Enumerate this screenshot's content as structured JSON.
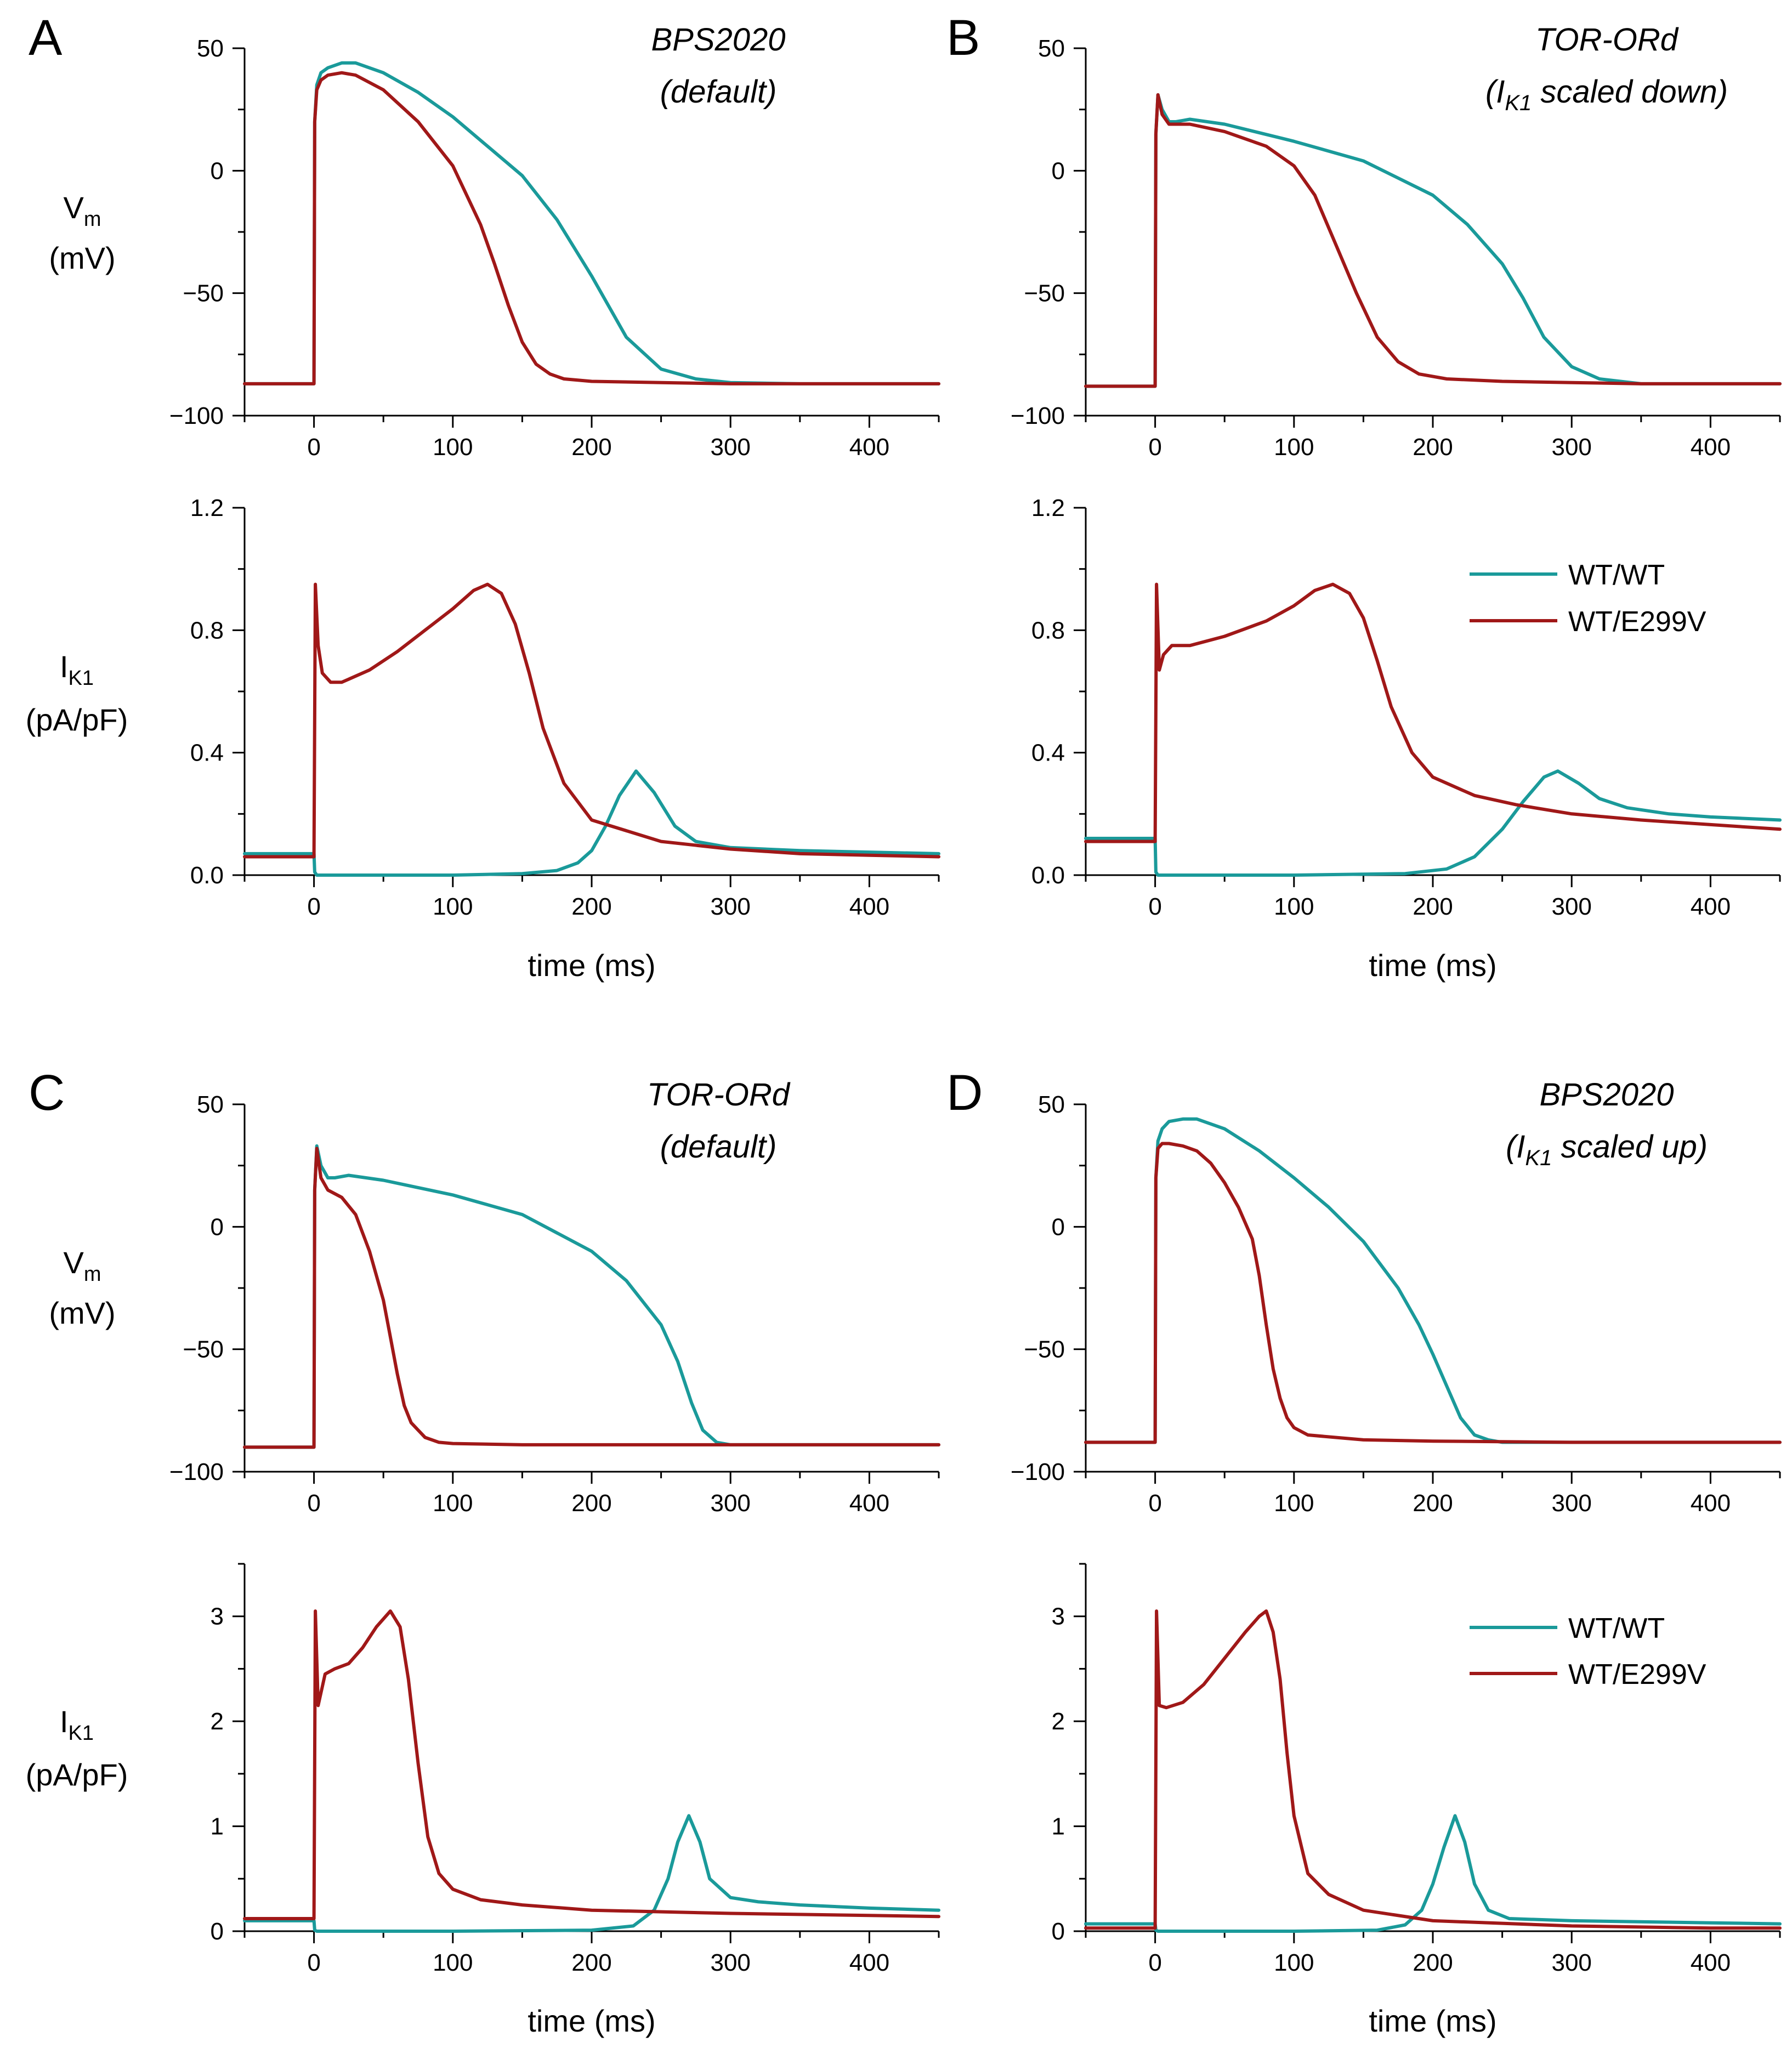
{
  "colors": {
    "wt": "#1a9a9a",
    "e299v": "#a01818"
  },
  "panels": [
    {
      "letter": "A",
      "title_line1": "BPS2020",
      "title_line2_pre": "(default)",
      "title_sub": "",
      "title_line2_post": ""
    },
    {
      "letter": "B",
      "title_line1": "TOR-ORd",
      "title_line2_pre": "(I",
      "title_sub": "K1",
      "title_line2_post": " scaled down)"
    },
    {
      "letter": "C",
      "title_line1": "TOR-ORd",
      "title_line2_pre": "(default)",
      "title_sub": "",
      "title_line2_post": ""
    },
    {
      "letter": "D",
      "title_line1": "BPS2020",
      "title_line2_pre": "(I",
      "title_sub": "K1",
      "title_line2_post": " scaled up)"
    }
  ],
  "labels": {
    "vm_main": "V",
    "vm_sub": "m",
    "vm_unit": "(mV)",
    "ik_main": "I",
    "ik_sub": "K1",
    "ik_unit": "(pA/pF)",
    "xlabel": "time (ms)"
  },
  "legend": {
    "wt": "WT/WT",
    "e299v": "WT/E299V"
  },
  "chart_data": [
    {
      "id": "A-vm",
      "type": "line",
      "title": "BPS2020 (default)",
      "xlabel": "",
      "ylabel": "Vm (mV)",
      "xlim": [
        -50,
        450
      ],
      "ylim": [
        -100,
        50
      ],
      "xticks": [
        0,
        100,
        200,
        300,
        400
      ],
      "xtick_labels": [
        "0",
        "100",
        "200",
        "300",
        "400"
      ],
      "yticks": [
        -100,
        -50,
        0,
        50
      ],
      "ytick_labels": [
        "−100",
        "−50",
        "0",
        "50"
      ],
      "series": [
        {
          "name": "WT/WT",
          "color": "wt",
          "x": [
            -50,
            0,
            0.5,
            2,
            5,
            10,
            20,
            30,
            50,
            75,
            100,
            125,
            150,
            175,
            200,
            225,
            250,
            275,
            300,
            350,
            400,
            450
          ],
          "y": [
            -87,
            -87,
            20,
            35,
            40,
            42,
            44,
            44,
            40,
            32,
            22,
            10,
            -2,
            -20,
            -43,
            -68,
            -81,
            -85,
            -86.5,
            -87,
            -87,
            -87
          ]
        },
        {
          "name": "WT/E299V",
          "color": "e299v",
          "x": [
            -50,
            0,
            0.5,
            2,
            5,
            10,
            20,
            30,
            50,
            75,
            100,
            120,
            130,
            140,
            150,
            160,
            170,
            180,
            200,
            250,
            300,
            450
          ],
          "y": [
            -87,
            -87,
            20,
            33,
            37,
            39,
            40,
            39,
            33,
            20,
            2,
            -22,
            -38,
            -55,
            -70,
            -79,
            -83,
            -85,
            -86,
            -86.5,
            -87,
            -87
          ]
        }
      ]
    },
    {
      "id": "A-ik1",
      "type": "line",
      "title": "",
      "xlabel": "time (ms)",
      "ylabel": "IK1 (pA/pF)",
      "xlim": [
        -50,
        450
      ],
      "ylim": [
        0,
        1.2
      ],
      "xticks": [
        0,
        100,
        200,
        300,
        400
      ],
      "xtick_labels": [
        "0",
        "100",
        "200",
        "300",
        "400"
      ],
      "yticks": [
        0,
        0.4,
        0.8,
        1.2
      ],
      "ytick_labels": [
        "0.0",
        "0.4",
        "0.8",
        "1.2"
      ],
      "series": [
        {
          "name": "WT/WT",
          "color": "wt",
          "x": [
            -50,
            -0.5,
            0,
            0.5,
            2,
            50,
            100,
            150,
            175,
            190,
            200,
            210,
            220,
            232,
            245,
            260,
            275,
            300,
            350,
            400,
            450
          ],
          "y": [
            0.07,
            0.07,
            0.07,
            0.01,
            0.0,
            0.0,
            0.0,
            0.005,
            0.015,
            0.04,
            0.08,
            0.16,
            0.26,
            0.34,
            0.27,
            0.16,
            0.11,
            0.09,
            0.08,
            0.075,
            0.07
          ]
        },
        {
          "name": "WT/E299V",
          "color": "e299v",
          "x": [
            -50,
            -0.5,
            0,
            1,
            3,
            6,
            12,
            20,
            40,
            60,
            80,
            100,
            115,
            125,
            135,
            145,
            155,
            165,
            180,
            200,
            250,
            300,
            350,
            400,
            450
          ],
          "y": [
            0.06,
            0.06,
            0.06,
            0.95,
            0.75,
            0.66,
            0.63,
            0.63,
            0.67,
            0.73,
            0.8,
            0.87,
            0.93,
            0.95,
            0.92,
            0.82,
            0.66,
            0.48,
            0.3,
            0.18,
            0.11,
            0.085,
            0.07,
            0.065,
            0.06
          ]
        }
      ]
    },
    {
      "id": "B-vm",
      "type": "line",
      "title": "TOR-ORd (IK1 scaled down)",
      "xlabel": "",
      "ylabel": "Vm (mV)",
      "xlim": [
        -50,
        450
      ],
      "ylim": [
        -100,
        50
      ],
      "xticks": [
        0,
        100,
        200,
        300,
        400
      ],
      "xtick_labels": [
        "0",
        "100",
        "200",
        "300",
        "400"
      ],
      "yticks": [
        -100,
        -50,
        0,
        50
      ],
      "ytick_labels": [
        "−100",
        "−50",
        "0",
        "50"
      ],
      "series": [
        {
          "name": "WT/WT",
          "color": "wt",
          "x": [
            -50,
            0,
            0.5,
            2,
            5,
            10,
            15,
            25,
            50,
            100,
            150,
            200,
            225,
            250,
            265,
            280,
            300,
            320,
            350,
            400,
            450
          ],
          "y": [
            -88,
            -88,
            15,
            31,
            25,
            20,
            20,
            21,
            19,
            12,
            4,
            -10,
            -22,
            -38,
            -52,
            -68,
            -80,
            -85,
            -87,
            -87,
            -87
          ]
        },
        {
          "name": "WT/E299V",
          "color": "e299v",
          "x": [
            -50,
            0,
            0.5,
            2,
            5,
            10,
            15,
            25,
            50,
            80,
            100,
            115,
            130,
            145,
            160,
            175,
            190,
            210,
            250,
            300,
            350,
            450
          ],
          "y": [
            -88,
            -88,
            15,
            31,
            23,
            19,
            19,
            19,
            16,
            10,
            2,
            -10,
            -30,
            -50,
            -68,
            -78,
            -83,
            -85,
            -86,
            -86.5,
            -87,
            -87
          ]
        }
      ]
    },
    {
      "id": "B-ik1",
      "type": "line",
      "title": "",
      "xlabel": "time (ms)",
      "ylabel": "",
      "xlim": [
        -50,
        450
      ],
      "ylim": [
        0,
        1.2
      ],
      "xticks": [
        0,
        100,
        200,
        300,
        400
      ],
      "xtick_labels": [
        "0",
        "100",
        "200",
        "300",
        "400"
      ],
      "yticks": [
        0,
        0.4,
        0.8,
        1.2
      ],
      "ytick_labels": [
        "0.0",
        "0.4",
        "0.8",
        "1.2"
      ],
      "series": [
        {
          "name": "WT/WT",
          "color": "wt",
          "x": [
            -50,
            -0.5,
            0,
            0.5,
            2,
            100,
            180,
            210,
            230,
            250,
            265,
            280,
            290,
            305,
            320,
            340,
            370,
            400,
            450
          ],
          "y": [
            0.12,
            0.12,
            0.12,
            0.01,
            0.0,
            0.0,
            0.005,
            0.02,
            0.06,
            0.15,
            0.24,
            0.32,
            0.34,
            0.3,
            0.25,
            0.22,
            0.2,
            0.19,
            0.18
          ]
        },
        {
          "name": "WT/E299V",
          "color": "e299v",
          "x": [
            -50,
            -0.5,
            0,
            1,
            3,
            6,
            12,
            25,
            50,
            80,
            100,
            115,
            128,
            140,
            150,
            160,
            170,
            185,
            200,
            230,
            260,
            300,
            350,
            400,
            450
          ],
          "y": [
            0.11,
            0.11,
            0.11,
            0.95,
            0.67,
            0.72,
            0.75,
            0.75,
            0.78,
            0.83,
            0.88,
            0.93,
            0.95,
            0.92,
            0.84,
            0.7,
            0.55,
            0.4,
            0.32,
            0.26,
            0.23,
            0.2,
            0.18,
            0.165,
            0.15
          ]
        }
      ]
    },
    {
      "id": "C-vm",
      "type": "line",
      "title": "TOR-ORd (default)",
      "xlabel": "",
      "ylabel": "Vm (mV)",
      "xlim": [
        -50,
        450
      ],
      "ylim": [
        -100,
        50
      ],
      "xticks": [
        0,
        100,
        200,
        300,
        400
      ],
      "xtick_labels": [
        "0",
        "100",
        "200",
        "300",
        "400"
      ],
      "yticks": [
        -100,
        -50,
        0,
        50
      ],
      "ytick_labels": [
        "−100",
        "−50",
        "0",
        "50"
      ],
      "series": [
        {
          "name": "WT/WT",
          "color": "wt",
          "x": [
            -50,
            0,
            0.5,
            2,
            5,
            10,
            15,
            25,
            50,
            100,
            150,
            200,
            225,
            250,
            262,
            272,
            280,
            290,
            300,
            350,
            400,
            450
          ],
          "y": [
            -90,
            -90,
            15,
            33,
            25,
            20,
            20,
            21,
            19,
            13,
            5,
            -10,
            -22,
            -40,
            -55,
            -72,
            -83,
            -88,
            -89,
            -89,
            -89,
            -89
          ]
        },
        {
          "name": "WT/E299V",
          "color": "e299v",
          "x": [
            -50,
            0,
            0.5,
            2,
            5,
            10,
            20,
            30,
            40,
            50,
            55,
            60,
            65,
            70,
            80,
            90,
            100,
            150,
            200,
            300,
            450
          ],
          "y": [
            -90,
            -90,
            15,
            32,
            20,
            15,
            12,
            5,
            -10,
            -30,
            -45,
            -60,
            -73,
            -80,
            -86,
            -88,
            -88.5,
            -89,
            -89,
            -89,
            -89
          ]
        }
      ]
    },
    {
      "id": "C-ik1",
      "type": "line",
      "title": "",
      "xlabel": "time (ms)",
      "ylabel": "IK1 (pA/pF)",
      "xlim": [
        -50,
        450
      ],
      "ylim": [
        0,
        3.5
      ],
      "xticks": [
        0,
        100,
        200,
        300,
        400
      ],
      "xtick_labels": [
        "0",
        "100",
        "200",
        "300",
        "400"
      ],
      "yticks": [
        0,
        1,
        2,
        3
      ],
      "ytick_labels": [
        "0",
        "1",
        "2",
        "3"
      ],
      "series": [
        {
          "name": "WT/WT",
          "color": "wt",
          "x": [
            -50,
            -0.5,
            0,
            0.5,
            2,
            100,
            200,
            230,
            245,
            255,
            262,
            270,
            278,
            285,
            300,
            320,
            350,
            400,
            450
          ],
          "y": [
            0.1,
            0.1,
            0.1,
            0.01,
            0.0,
            0.0,
            0.01,
            0.05,
            0.2,
            0.5,
            0.85,
            1.1,
            0.85,
            0.5,
            0.32,
            0.28,
            0.25,
            0.22,
            0.2
          ]
        },
        {
          "name": "WT/E299V",
          "color": "e299v",
          "x": [
            -50,
            -0.5,
            0,
            1,
            3,
            8,
            15,
            25,
            35,
            45,
            55,
            62,
            68,
            75,
            82,
            90,
            100,
            120,
            150,
            200,
            300,
            400,
            450
          ],
          "y": [
            0.12,
            0.12,
            0.12,
            3.05,
            2.15,
            2.45,
            2.5,
            2.55,
            2.7,
            2.9,
            3.05,
            2.9,
            2.4,
            1.6,
            0.9,
            0.55,
            0.4,
            0.3,
            0.25,
            0.2,
            0.17,
            0.15,
            0.14
          ]
        }
      ]
    },
    {
      "id": "D-vm",
      "type": "line",
      "title": "BPS2020 (IK1 scaled up)",
      "xlabel": "",
      "ylabel": "",
      "xlim": [
        -50,
        450
      ],
      "ylim": [
        -100,
        50
      ],
      "xticks": [
        0,
        100,
        200,
        300,
        400
      ],
      "xtick_labels": [
        "0",
        "100",
        "200",
        "300",
        "400"
      ],
      "yticks": [
        -100,
        -50,
        0,
        50
      ],
      "ytick_labels": [
        "−100",
        "−50",
        "0",
        "50"
      ],
      "series": [
        {
          "name": "WT/WT",
          "color": "wt",
          "x": [
            -50,
            0,
            0.5,
            2,
            5,
            10,
            20,
            30,
            50,
            75,
            100,
            125,
            150,
            175,
            190,
            200,
            210,
            220,
            230,
            240,
            250,
            300,
            450
          ],
          "y": [
            -88,
            -88,
            20,
            35,
            40,
            43,
            44,
            44,
            40,
            31,
            20,
            8,
            -6,
            -25,
            -40,
            -52,
            -65,
            -78,
            -85,
            -87,
            -88,
            -88,
            -88
          ]
        },
        {
          "name": "WT/E299V",
          "color": "e299v",
          "x": [
            -50,
            0,
            0.5,
            2,
            5,
            10,
            20,
            30,
            40,
            50,
            60,
            70,
            75,
            80,
            85,
            90,
            95,
            100,
            110,
            130,
            150,
            200,
            300,
            450
          ],
          "y": [
            -88,
            -88,
            20,
            32,
            34,
            34,
            33,
            31,
            26,
            18,
            8,
            -5,
            -20,
            -40,
            -58,
            -70,
            -78,
            -82,
            -85,
            -86,
            -87,
            -87.5,
            -88,
            -88
          ]
        }
      ]
    },
    {
      "id": "D-ik1",
      "type": "line",
      "title": "",
      "xlabel": "time (ms)",
      "ylabel": "",
      "xlim": [
        -50,
        450
      ],
      "ylim": [
        0,
        3.5
      ],
      "xticks": [
        0,
        100,
        200,
        300,
        400
      ],
      "xtick_labels": [
        "0",
        "100",
        "200",
        "300",
        "400"
      ],
      "yticks": [
        0,
        1,
        2,
        3
      ],
      "ytick_labels": [
        "0",
        "1",
        "2",
        "3"
      ],
      "series": [
        {
          "name": "WT/WT",
          "color": "wt",
          "x": [
            -50,
            -0.5,
            0,
            0.5,
            2,
            100,
            160,
            180,
            192,
            200,
            208,
            216,
            223,
            230,
            240,
            255,
            300,
            400,
            450
          ],
          "y": [
            0.07,
            0.07,
            0.07,
            0.01,
            0.0,
            0.0,
            0.01,
            0.06,
            0.2,
            0.45,
            0.8,
            1.1,
            0.85,
            0.45,
            0.2,
            0.12,
            0.1,
            0.08,
            0.07
          ]
        },
        {
          "name": "WT/E299V",
          "color": "e299v",
          "x": [
            -50,
            -0.5,
            0,
            1,
            3,
            8,
            20,
            35,
            50,
            65,
            75,
            80,
            85,
            90,
            95,
            100,
            110,
            125,
            150,
            200,
            300,
            400,
            450
          ],
          "y": [
            0.03,
            0.03,
            0.03,
            3.05,
            2.15,
            2.13,
            2.18,
            2.35,
            2.6,
            2.85,
            3.0,
            3.05,
            2.85,
            2.4,
            1.7,
            1.1,
            0.55,
            0.35,
            0.2,
            0.1,
            0.05,
            0.03,
            0.03
          ]
        }
      ]
    }
  ]
}
